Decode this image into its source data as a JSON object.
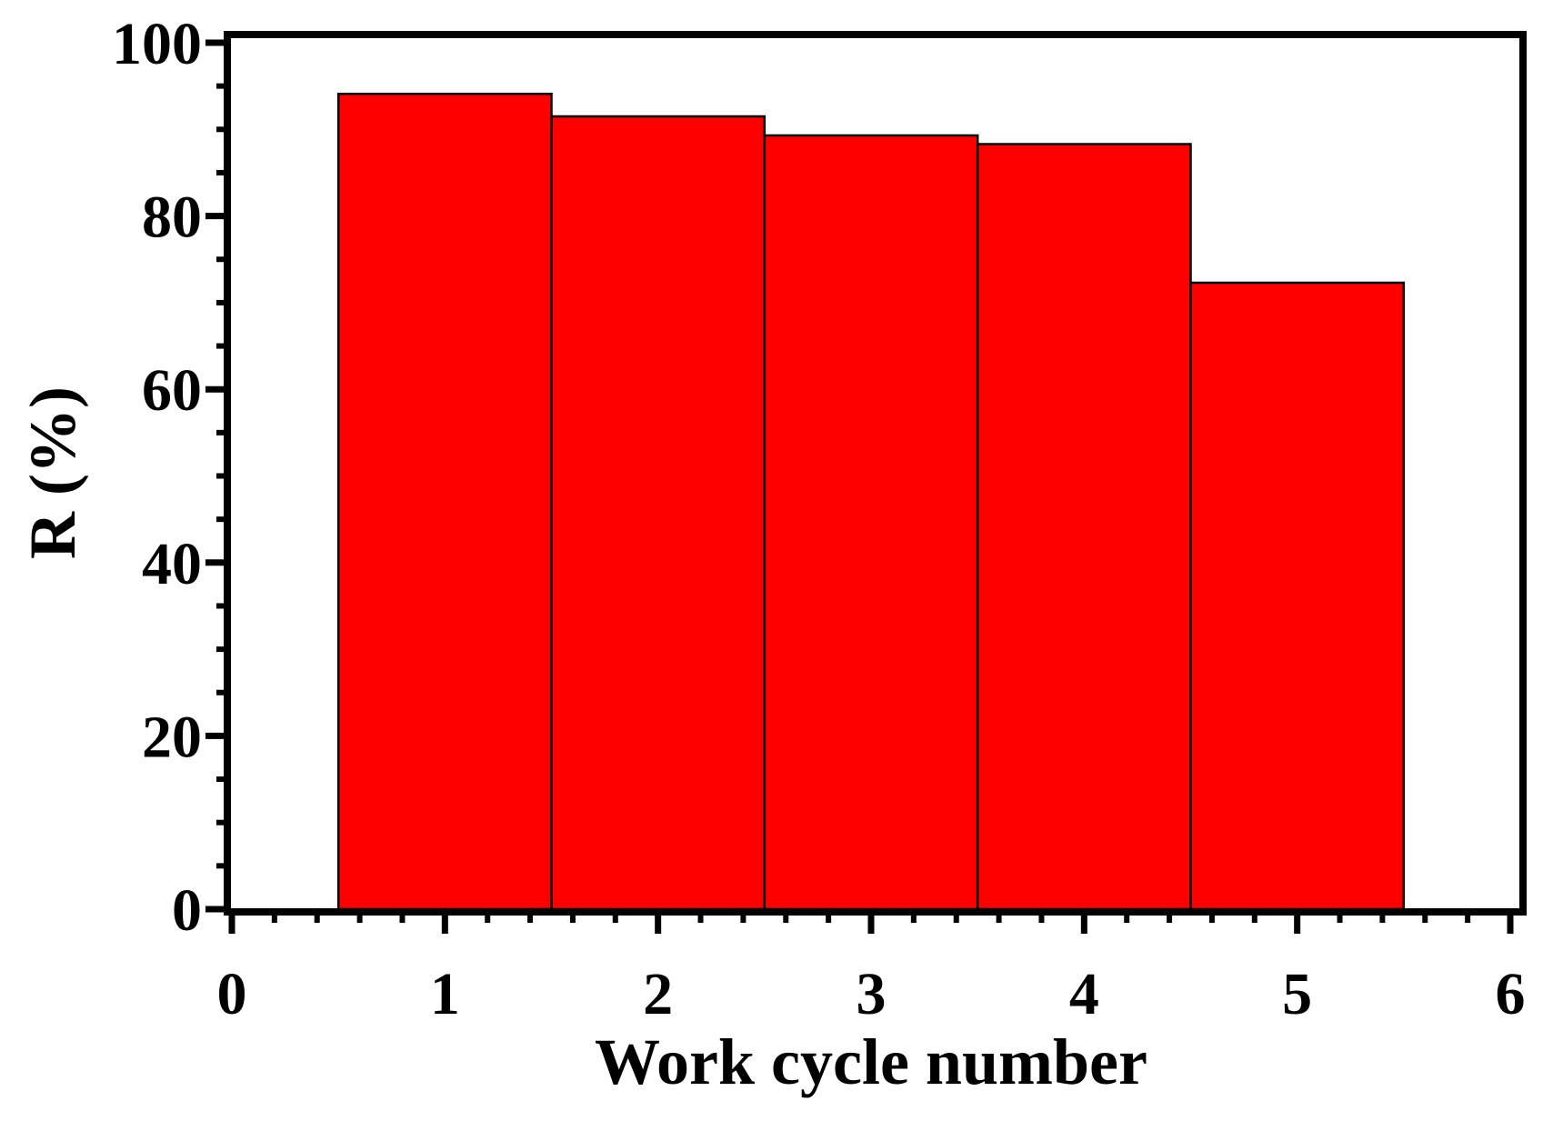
{
  "chart_data": {
    "type": "bar",
    "x": [
      1,
      2,
      3,
      4,
      5
    ],
    "values": [
      94.1,
      91.5,
      89.3,
      88.3,
      72.3
    ],
    "color": "#ff0000",
    "bar_width": 1,
    "xlabel": "Work cycle number",
    "ylabel": "R (%)",
    "xlim": [
      0,
      6
    ],
    "xticks": [
      0,
      1,
      2,
      3,
      4,
      5,
      6
    ],
    "xminor_step": 0.2,
    "ylim": [
      0,
      100
    ],
    "yticks": [
      0,
      20,
      40,
      60,
      80,
      100
    ],
    "yminor_step": 5,
    "grid": false
  }
}
